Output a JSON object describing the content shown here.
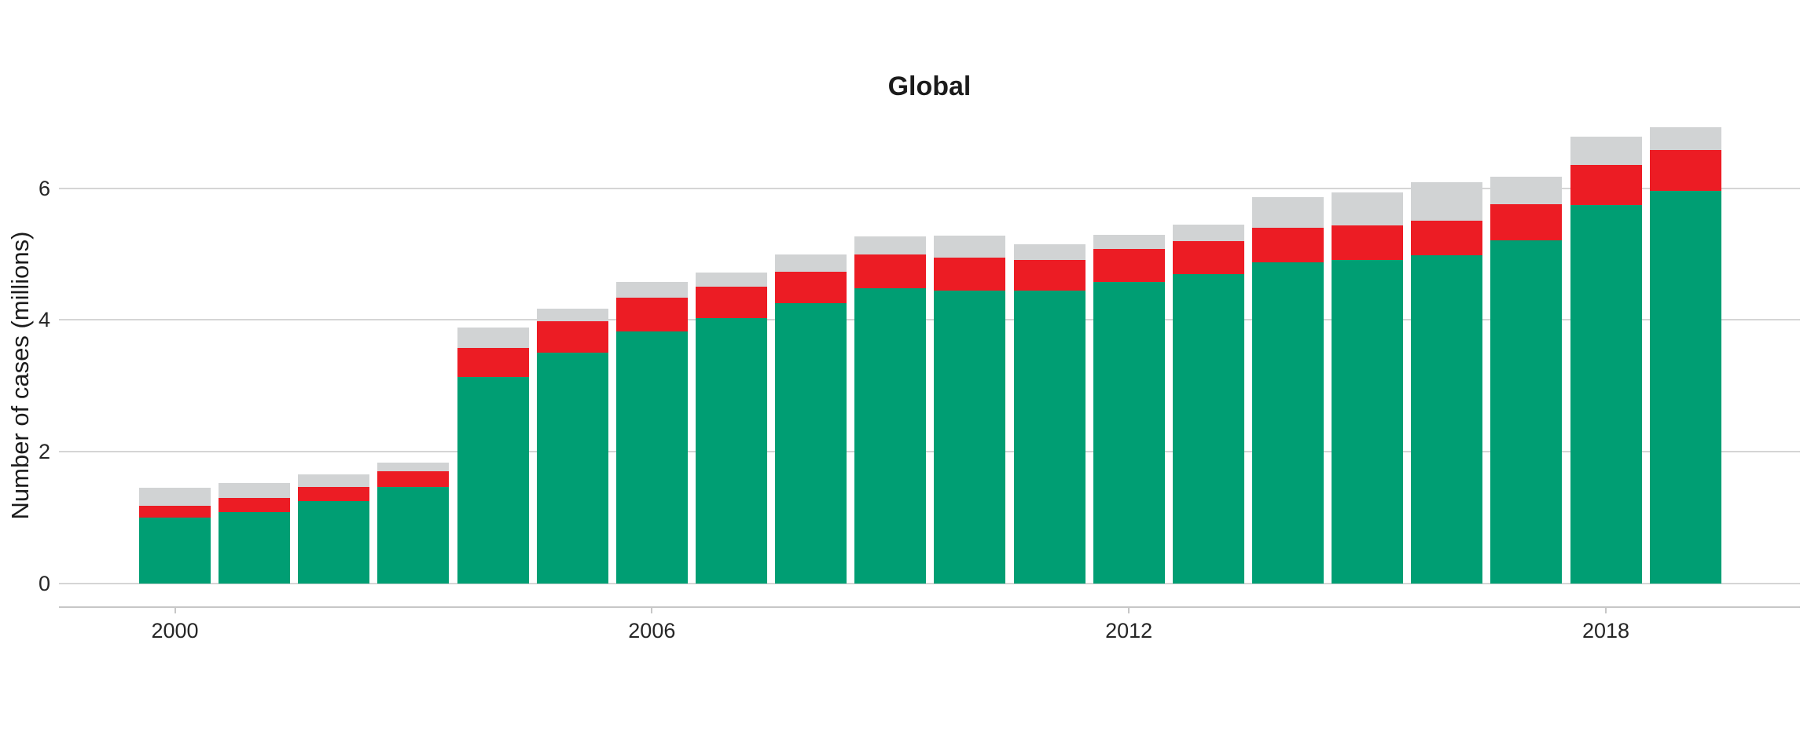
{
  "chart_data": {
    "type": "bar",
    "stacked": true,
    "title": "Global",
    "ylabel": "Number of cases (millions)",
    "categories": [
      2000,
      2001,
      2002,
      2003,
      2004,
      2005,
      2006,
      2007,
      2008,
      2009,
      2010,
      2011,
      2012,
      2013,
      2014,
      2015,
      2016,
      2017,
      2018,
      2019
    ],
    "series": [
      {
        "name": "green-segment",
        "color": "#009E73",
        "values": [
          1.0,
          1.08,
          1.25,
          1.47,
          3.13,
          3.5,
          3.83,
          4.03,
          4.25,
          4.48,
          4.45,
          4.45,
          4.58,
          4.7,
          4.87,
          4.91,
          4.98,
          5.21,
          5.74,
          5.96
        ]
      },
      {
        "name": "red-segment",
        "color": "#EC1C24",
        "values": [
          0.18,
          0.22,
          0.22,
          0.23,
          0.44,
          0.48,
          0.51,
          0.48,
          0.48,
          0.51,
          0.5,
          0.46,
          0.5,
          0.5,
          0.53,
          0.52,
          0.53,
          0.55,
          0.61,
          0.62
        ]
      },
      {
        "name": "gray-segment",
        "color": "#D1D3D4",
        "values": [
          0.27,
          0.22,
          0.19,
          0.14,
          0.31,
          0.19,
          0.24,
          0.21,
          0.27,
          0.28,
          0.33,
          0.24,
          0.21,
          0.25,
          0.47,
          0.5,
          0.58,
          0.41,
          0.43,
          0.34
        ]
      }
    ],
    "stack_totals": [
      1.45,
      1.52,
      1.66,
      1.84,
      3.88,
      4.17,
      4.58,
      4.72,
      5.0,
      5.27,
      5.28,
      5.15,
      5.29,
      5.45,
      5.87,
      5.93,
      6.09,
      6.17,
      6.78,
      6.92
    ],
    "yticks": [
      0,
      2,
      4,
      6
    ],
    "xtick_years": [
      2000,
      2006,
      2012,
      2018
    ],
    "xtick_labels": [
      "2000",
      "2006",
      "2012",
      "2018"
    ],
    "ylim": [
      0,
      7.07
    ],
    "grid": "horizontal",
    "legend": "none"
  },
  "style": {
    "grid_color": "#D5D5D5",
    "axis_color": "#C7C7C7",
    "text_color": "#262626",
    "background": "#FFFFFF"
  }
}
